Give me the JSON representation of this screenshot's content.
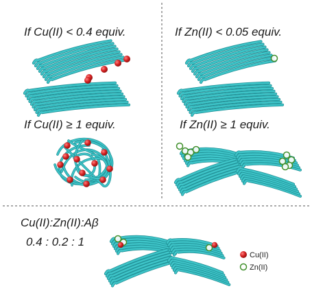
{
  "panels": {
    "cu_low": {
      "label": "If Cu(II) < 0.4 equiv."
    },
    "zn_low": {
      "label": "If Zn(II) < 0.05 equiv."
    },
    "cu_high": {
      "label": "If Cu(II) ≥ 1 equiv."
    },
    "zn_high": {
      "label": "If Zn(II) ≥ 1 equiv."
    },
    "mixed": {
      "label_line1": "Cu(II):Zn(II):Aβ",
      "label_line2": "0.4 : 0.2 : 1"
    }
  },
  "legend": {
    "cu": {
      "label": "Cu(II)",
      "color": "#d42020"
    },
    "zn": {
      "label": "Zn(II)",
      "color": "#7cc24a"
    }
  },
  "colors": {
    "fibril": "#3ec4c8",
    "fibril_edge": "#1f8f95",
    "divider": "#555555"
  }
}
